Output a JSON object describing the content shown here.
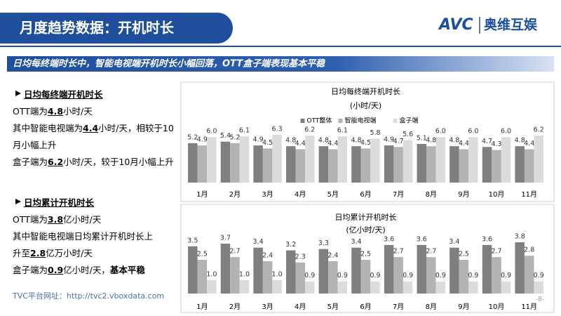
{
  "header": {
    "title": "月度趋势数据：开机时长",
    "logo_mark": "AVC",
    "logo_text": "奥维互娱"
  },
  "banner": "日均每终端时长中，智能电视端开机时长小幅回落，OTT盒子端表现基本平稳",
  "sections": [
    {
      "heading": "日均每终端开机时长",
      "lines": [
        [
          {
            "text": "OTT端为"
          },
          {
            "text": "4.8",
            "style": "bold-underline"
          },
          {
            "text": "小时/天"
          }
        ],
        [
          {
            "text": "其中智能电视端为"
          },
          {
            "text": "4.4",
            "style": "bold-underline"
          },
          {
            "text": "小时/天，相较于10"
          }
        ],
        [
          {
            "text": "月小幅上升"
          }
        ],
        [
          {
            "text": "盒子端为"
          },
          {
            "text": "6.2",
            "style": "bold-underline"
          },
          {
            "text": "小时/天，较于10月小幅上升"
          }
        ]
      ]
    },
    {
      "heading": "日均累计开机时长",
      "lines": [
        [
          {
            "text": "OTT端为"
          },
          {
            "text": "3.8",
            "style": "bold-underline"
          },
          {
            "text": "亿小时/天"
          }
        ],
        [
          {
            "text": "其中智能电视端日均累计开机时长上"
          }
        ],
        [
          {
            "text": "升至"
          },
          {
            "text": "2.8",
            "style": "bold-underline"
          },
          {
            "text": "亿万小时/天"
          }
        ],
        [
          {
            "text": "盒子端为"
          },
          {
            "text": "0.9",
            "style": "bold-underline"
          },
          {
            "text": "亿小时/天，"
          },
          {
            "text": "基本平稳",
            "style": "bold"
          }
        ]
      ]
    }
  ],
  "footer": {
    "url": "TVC平台网址：http://tvc2.vboxdata.com",
    "page": "-8-"
  },
  "chart_data": [
    {
      "type": "bar",
      "title": "日均每终端开机时长",
      "subtitle": "(小时/天)",
      "legend": true,
      "categories": [
        "1月",
        "2月",
        "3月",
        "4月",
        "5月",
        "6月",
        "7月",
        "8月",
        "9月",
        "10月",
        "11月"
      ],
      "series": [
        {
          "name": "OTT整体",
          "color": "#7f7f7f",
          "values": [
            5.2,
            5.4,
            4.9,
            4.8,
            4.8,
            4.8,
            4.9,
            5.1,
            4.8,
            4.7,
            4.8
          ],
          "value_labels": [
            "5.2",
            "5.4",
            "4.9",
            "4.8",
            "4.8",
            "4.8",
            "4.9",
            "5.1",
            "4.8",
            "4.7",
            "4.8"
          ]
        },
        {
          "name": "智能电视端",
          "color": "#b3b3b3",
          "values": [
            4.9,
            5.2,
            4.5,
            4.4,
            4.4,
            4.5,
            4.7,
            4.8,
            4.4,
            4.3,
            4.4
          ],
          "value_labels": [
            "4.9",
            "5.2",
            "4.5",
            "4.4",
            "4.4",
            "4.5",
            "4.7",
            "4.8",
            "4.4",
            "4.3",
            "4.4"
          ]
        },
        {
          "name": "盒子端",
          "color": "#dcdcdc",
          "values": [
            6.0,
            6.1,
            6.3,
            6.2,
            6.1,
            5.8,
            5.6,
            6.0,
            6.0,
            6.0,
            6.2
          ],
          "value_labels": [
            "6.0",
            "6.1",
            "6.3",
            "6.2",
            "6.1",
            "5.8",
            "5.6",
            "6.0",
            "6.0",
            "6.0",
            "6.2"
          ]
        }
      ]
    },
    {
      "type": "bar",
      "title": "日均累计开机时长",
      "subtitle": "(亿小时/天)",
      "legend": false,
      "categories": [
        "1月",
        "2月",
        "3月",
        "4月",
        "5月",
        "6月",
        "7月",
        "8月",
        "9月",
        "10月",
        "11月"
      ],
      "series": [
        {
          "color": "#7f7f7f",
          "values": [
            3.5,
            3.7,
            3.4,
            3.2,
            3.3,
            3.4,
            3.6,
            3.6,
            3.4,
            3.6,
            3.8
          ],
          "value_labels": [
            "3.5",
            "3.7",
            "3.4",
            "3.2",
            "3.3",
            "3.4",
            "3.6",
            "3.6",
            "3.4",
            "3.6",
            "3.8"
          ]
        },
        {
          "color": "#b3b3b3",
          "values": [
            2.5,
            2.7,
            2.4,
            2.3,
            2.4,
            2.5,
            2.7,
            2.7,
            2.5,
            2.7,
            2.8
          ],
          "value_labels": [
            "2.5",
            "2.7",
            "2.4",
            "2.3",
            "2.4",
            "2.5",
            "2.7",
            "2.7",
            "2.5",
            "2.7",
            "2.8"
          ]
        },
        {
          "color": "#dcdcdc",
          "values": [
            1.0,
            1.0,
            1.0,
            0.9,
            0.9,
            0.9,
            0.9,
            0.9,
            0.9,
            0.9,
            0.9
          ],
          "value_labels": [
            "1.0",
            "1.0",
            "1.0",
            "0.9",
            "0.9",
            "0.9",
            "0.9",
            "0.9",
            "0.9",
            "0.9",
            "0.9"
          ]
        }
      ]
    }
  ]
}
